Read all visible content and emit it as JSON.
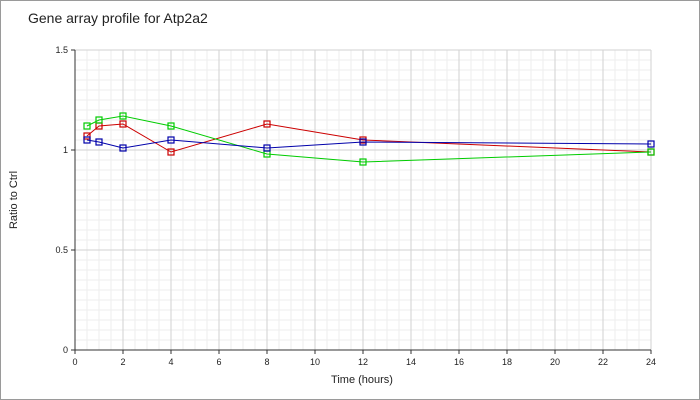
{
  "chart_data": {
    "type": "line",
    "title": "Gene array profile for Atp2a2",
    "xlabel": "Time (hours)",
    "ylabel": "Ratio to Ctrl",
    "xlim": [
      0,
      24
    ],
    "ylim": [
      0,
      1.5
    ],
    "x_ticks": [
      "0",
      "2",
      "4",
      "6",
      "8",
      "10",
      "12",
      "14",
      "16",
      "18",
      "20",
      "22",
      "24"
    ],
    "y_ticks": [
      "0",
      "0.5",
      "1",
      "1.5"
    ],
    "grid": true,
    "legend": "none",
    "series": [
      {
        "color": "#cc0000",
        "points": [
          [
            0.5,
            1.07
          ],
          [
            1,
            1.12
          ],
          [
            2,
            1.13
          ],
          [
            4,
            0.99
          ],
          [
            8,
            1.13
          ],
          [
            12,
            1.05
          ],
          [
            24,
            0.99
          ]
        ]
      },
      {
        "color": "#00cc00",
        "points": [
          [
            0.5,
            1.12
          ],
          [
            1,
            1.15
          ],
          [
            2,
            1.17
          ],
          [
            4,
            1.12
          ],
          [
            8,
            0.98
          ],
          [
            12,
            0.94
          ],
          [
            24,
            0.99
          ]
        ]
      },
      {
        "color": "#0000aa",
        "points": [
          [
            0.5,
            1.05
          ],
          [
            1,
            1.04
          ],
          [
            2,
            1.01
          ],
          [
            4,
            1.05
          ],
          [
            8,
            1.01
          ],
          [
            12,
            1.04
          ],
          [
            24,
            1.03
          ]
        ]
      }
    ]
  }
}
